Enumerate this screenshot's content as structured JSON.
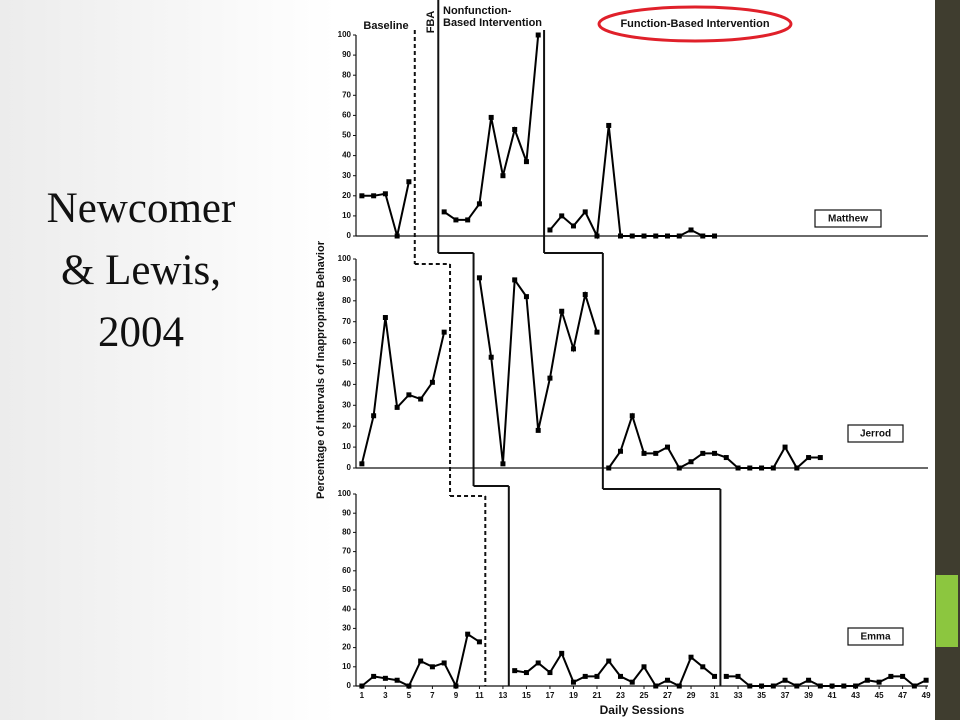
{
  "slide": {
    "title_lines": [
      "Newcomer",
      "& Lewis,",
      "2004"
    ]
  },
  "chart_data": [
    {
      "type": "line",
      "annotations": [
        "Baseline",
        "FBA",
        "Nonfunction-",
        "Based Intervention",
        "Function-Based Intervention"
      ],
      "x": [
        1,
        2,
        3,
        4,
        5,
        6,
        7,
        8,
        9,
        10,
        11,
        12,
        13,
        14,
        15,
        16,
        17,
        18,
        19,
        20,
        21,
        22,
        23,
        24,
        25,
        26,
        27,
        28,
        29,
        30,
        31
      ],
      "series": [
        {
          "name": "Matthew",
          "color": "#000000",
          "values": [
            20,
            20,
            21,
            0,
            27,
            null,
            null,
            12,
            8,
            8,
            16,
            59,
            30,
            53,
            37,
            100,
            3,
            10,
            5,
            12,
            0,
            55,
            0,
            0,
            0,
            0,
            0,
            0,
            3,
            0,
            0
          ]
        }
      ],
      "phase_changes": [
        5.5,
        7.5,
        16.5
      ],
      "xlim": [
        0.5,
        49.5
      ],
      "ylim": [
        0,
        100
      ],
      "yticks": [
        0,
        10,
        20,
        30,
        40,
        50,
        60,
        70,
        80,
        90,
        100
      ]
    },
    {
      "type": "line",
      "ylabel": "Percentage of Intervals of Inappropriate Behavior",
      "x": [
        1,
        2,
        3,
        4,
        5,
        6,
        7,
        8,
        9,
        10,
        11,
        12,
        13,
        14,
        15,
        16,
        17,
        18,
        19,
        20,
        21,
        22,
        23,
        24,
        25,
        26,
        27,
        28,
        29,
        30,
        31,
        32,
        33,
        34,
        35,
        36,
        37,
        38,
        39,
        40
      ],
      "series": [
        {
          "name": "Jerrod",
          "color": "#000000",
          "values": [
            2,
            25,
            72,
            29,
            35,
            33,
            41,
            65,
            null,
            null,
            91,
            53,
            2,
            90,
            82,
            18,
            43,
            75,
            57,
            83,
            65,
            0,
            8,
            25,
            7,
            7,
            10,
            0,
            3,
            7,
            7,
            5,
            0,
            0,
            0,
            0,
            10,
            0,
            5,
            5
          ]
        }
      ],
      "phase_changes": [
        8.5,
        10.5,
        21.5
      ],
      "xlim": [
        0.5,
        49.5
      ],
      "ylim": [
        0,
        100
      ],
      "yticks": [
        0,
        10,
        20,
        30,
        40,
        50,
        60,
        70,
        80,
        90,
        100
      ]
    },
    {
      "type": "line",
      "xlabel": "Daily Sessions",
      "x": [
        1,
        2,
        3,
        4,
        5,
        6,
        7,
        8,
        9,
        10,
        11,
        12,
        13,
        14,
        15,
        16,
        17,
        18,
        19,
        20,
        21,
        22,
        23,
        24,
        25,
        26,
        27,
        28,
        29,
        30,
        31,
        32,
        33,
        34,
        35,
        36,
        37,
        38,
        39,
        40,
        41,
        42,
        43,
        44,
        45,
        46,
        47,
        48,
        49
      ],
      "series": [
        {
          "name": "Emma",
          "color": "#000000",
          "values": [
            0,
            5,
            4,
            3,
            0,
            13,
            10,
            12,
            0,
            27,
            23,
            null,
            null,
            8,
            7,
            12,
            7,
            17,
            2,
            5,
            5,
            13,
            5,
            2,
            10,
            0,
            3,
            0,
            15,
            10,
            5,
            5,
            5,
            0,
            0,
            0,
            3,
            0,
            3,
            0,
            0,
            0,
            0,
            3,
            2,
            5,
            5,
            0,
            3
          ]
        }
      ],
      "phase_changes": [
        11.5,
        13.5,
        31.5
      ],
      "xlim": [
        0.5,
        49.5
      ],
      "ylim": [
        0,
        100
      ],
      "xticks": [
        1,
        3,
        5,
        7,
        9,
        11,
        13,
        15,
        17,
        19,
        21,
        23,
        25,
        27,
        29,
        31,
        33,
        35,
        37,
        39,
        41,
        43,
        45,
        47,
        49
      ],
      "yticks": [
        0,
        10,
        20,
        30,
        40,
        50,
        60,
        70,
        80,
        90,
        100
      ]
    }
  ]
}
